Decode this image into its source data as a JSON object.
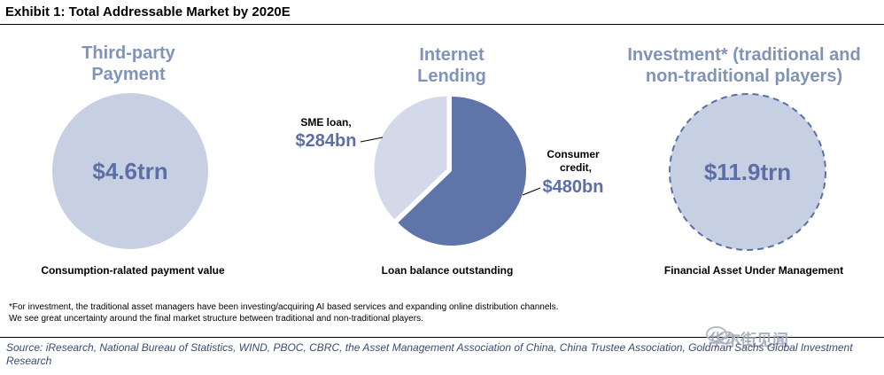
{
  "header": {
    "title": "Exhibit 1: Total Addressable Market by 2020E"
  },
  "colors": {
    "light": "#c7d0e2",
    "lighter": "#d3d9e8",
    "dark": "#5f74a8",
    "title": "#8093b8",
    "value": "#5b6fa6"
  },
  "chart_data": [
    {
      "type": "bubble",
      "title_lines": [
        "Third-party",
        "Payment"
      ],
      "value_label": "$4.6trn",
      "value": 4.6,
      "unit": "trn",
      "caption": "Consumption-ralated payment value"
    },
    {
      "type": "pie",
      "title_lines": [
        "Internet",
        "Lending"
      ],
      "categories": [
        "SME loan,",
        "Consumer credit,"
      ],
      "label_lines": [
        [
          "SME loan,"
        ],
        [
          "Consumer",
          "credit,"
        ]
      ],
      "value_labels": [
        "$284bn",
        "$480bn"
      ],
      "values": [
        284,
        480
      ],
      "unit": "bn",
      "colors": [
        "#d3d9e8",
        "#5f74a8"
      ],
      "caption": "Loan balance outstanding"
    },
    {
      "type": "bubble",
      "title_lines": [
        "Investment* (traditional and",
        "non-traditional players)"
      ],
      "value_label": "$11.9trn",
      "value": 11.9,
      "unit": "trn",
      "border": "dashed",
      "caption": "Financial Asset Under Management"
    }
  ],
  "footnote": {
    "lines": [
      "*For investment, the traditional asset managers have been investing/acquiring AI based services and expanding online distribution channels.",
      "We see great uncertainty around the final market structure between traditional and non-traditional players."
    ]
  },
  "source": {
    "text": "Source: iResearch, National Bureau of Statistics, WIND, PBOC, CBRC, the Asset Management Association of China, China Trustee Association, Goldman Sachs Global Investment Research"
  },
  "watermark": {
    "text": "华尔街见闻",
    "icon": "wechat-icon"
  }
}
